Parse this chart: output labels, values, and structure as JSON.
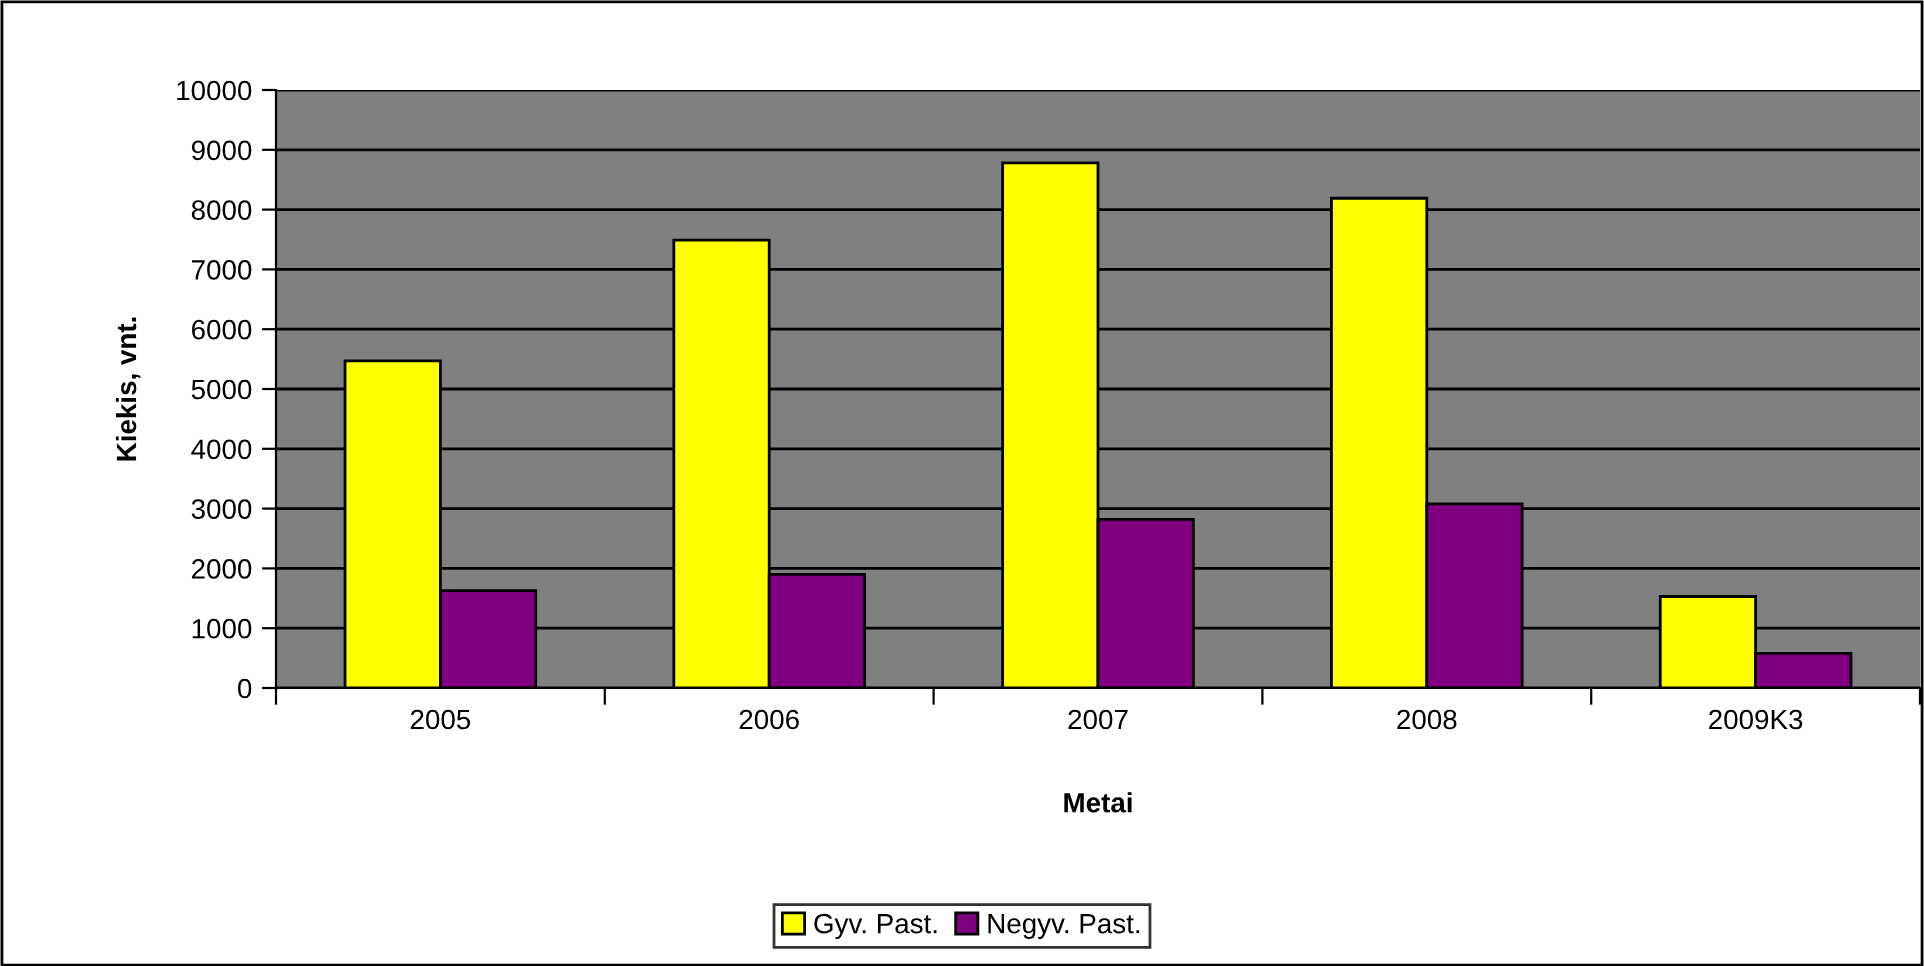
{
  "chart_data": {
    "type": "bar",
    "xlabel": "Metai",
    "ylabel": "Kiekis, vnt.",
    "categories": [
      "2005",
      "2006",
      "2007",
      "2008",
      "2009K3"
    ],
    "series": [
      {
        "name": "Gyv. Past.",
        "color": "#ffff00",
        "values": [
          5470,
          7490,
          8780,
          8190,
          1530
        ]
      },
      {
        "name": "Negyv. Past.",
        "color": "#800080",
        "values": [
          1630,
          1900,
          2820,
          3080,
          580
        ]
      }
    ],
    "ylim": [
      0,
      10000
    ],
    "yticks": [
      0,
      1000,
      2000,
      3000,
      4000,
      5000,
      6000,
      7000,
      8000,
      9000,
      10000
    ],
    "grid": "y",
    "legend": "bottom"
  }
}
